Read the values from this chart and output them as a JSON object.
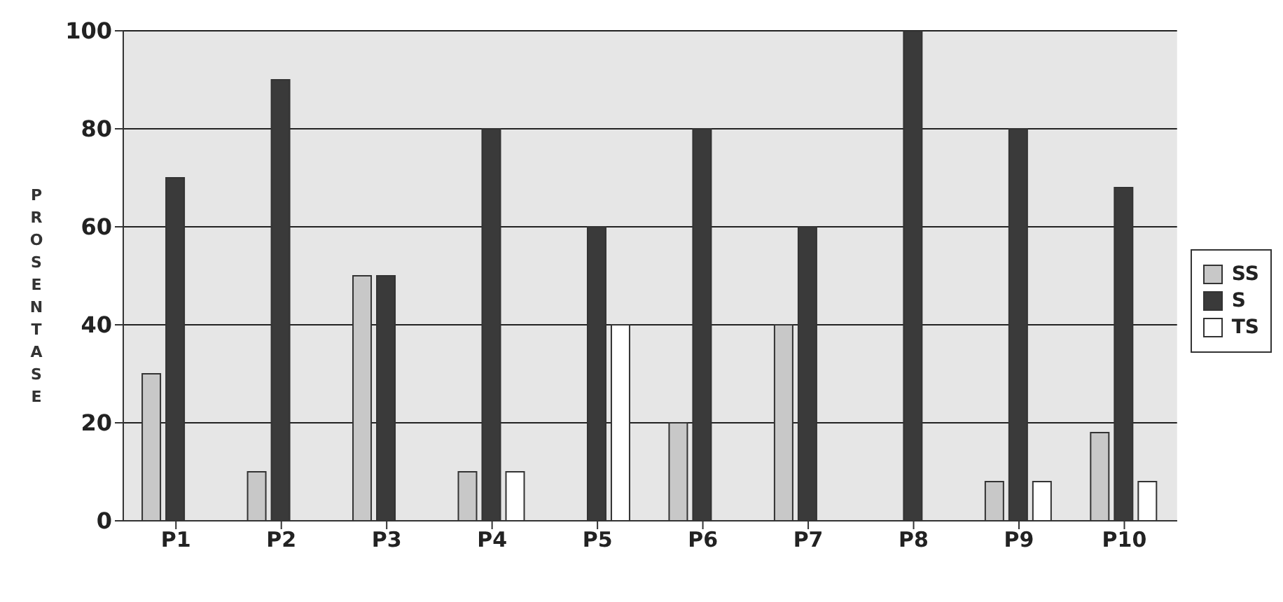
{
  "chart_data": {
    "type": "bar",
    "ylabel": "PROSENTASE",
    "categories": [
      "P1",
      "P2",
      "P3",
      "P4",
      "P5",
      "P6",
      "P7",
      "P8",
      "P9",
      "P10"
    ],
    "series": [
      {
        "name": "SS",
        "color": "#c8c8c8",
        "values": [
          30,
          10,
          50,
          10,
          0,
          20,
          40,
          0,
          8,
          18
        ]
      },
      {
        "name": "S",
        "color": "#3a3a3a",
        "values": [
          70,
          90,
          50,
          80,
          60,
          80,
          60,
          100,
          80,
          68
        ]
      },
      {
        "name": "TS",
        "color": "#ffffff",
        "values": [
          0,
          0,
          0,
          10,
          40,
          0,
          0,
          0,
          8,
          8
        ]
      }
    ],
    "ylim": [
      0,
      100
    ],
    "yticks": [
      0,
      20,
      40,
      60,
      80,
      100
    ],
    "grid": "y",
    "legend": "right"
  }
}
